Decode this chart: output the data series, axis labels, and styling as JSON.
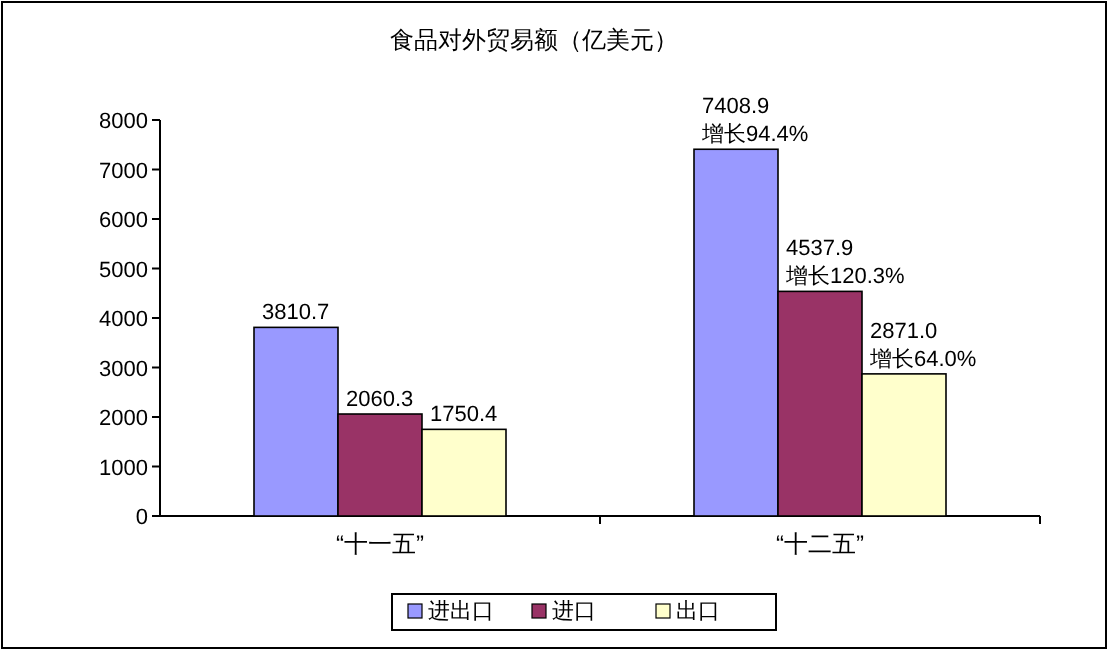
{
  "chart_data": {
    "type": "bar",
    "title": "食品对外贸易额（亿美元）",
    "categories": [
      "“十一五”",
      "“十二五”"
    ],
    "series": [
      {
        "name": "进出口",
        "color": "#9999ff",
        "values": [
          3810.7,
          7408.9
        ],
        "value_labels": [
          "3810.7",
          "7408.9\n增长94.4%"
        ]
      },
      {
        "name": "进口",
        "color": "#993366",
        "values": [
          2060.3,
          4537.9
        ],
        "value_labels": [
          "2060.3",
          "4537.9\n增长120.3%"
        ]
      },
      {
        "name": "出口",
        "color": "#ffffcc",
        "values": [
          1750.4,
          2871.0
        ],
        "value_labels": [
          "1750.4",
          "2871.0\n增长64.0%"
        ]
      }
    ],
    "ylim": [
      0,
      8000
    ],
    "yticks": [
      0,
      1000,
      2000,
      3000,
      4000,
      5000,
      6000,
      7000,
      8000
    ],
    "grid": false,
    "legend": "bottom"
  }
}
